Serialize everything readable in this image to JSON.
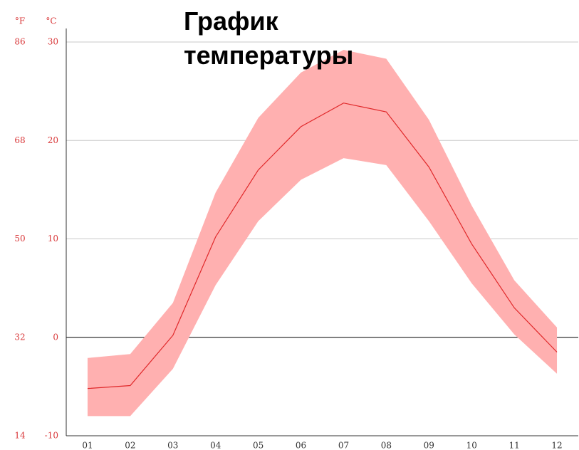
{
  "chart_data": {
    "type": "line",
    "title": "График температуры",
    "y_unit": "°C",
    "y2_unit": "°F",
    "categories": [
      "01",
      "02",
      "03",
      "04",
      "05",
      "06",
      "07",
      "08",
      "09",
      "10",
      "11",
      "12"
    ],
    "series": [
      {
        "color": "#e0282a",
        "values": [
          -5.2,
          -4.9,
          0.2,
          10.2,
          17.0,
          21.4,
          23.8,
          22.9,
          17.3,
          9.5,
          3.0,
          -1.5
        ]
      }
    ],
    "band": {
      "color": "#ffb0b0",
      "upper": [
        -2.1,
        -1.7,
        3.5,
        14.7,
        22.3,
        26.9,
        29.2,
        28.3,
        22.1,
        13.4,
        5.8,
        1.0
      ],
      "lower": [
        -8.0,
        -8.0,
        -3.2,
        5.3,
        11.8,
        16.0,
        18.2,
        17.5,
        11.8,
        5.5,
        0.3,
        -3.7
      ]
    },
    "ylim": [
      -10,
      30
    ],
    "yticks": [
      -10,
      0,
      10,
      20,
      30
    ],
    "y2lim": [
      14,
      86
    ],
    "y2ticks": [
      14,
      32,
      50,
      68,
      86
    ],
    "grid": true
  }
}
